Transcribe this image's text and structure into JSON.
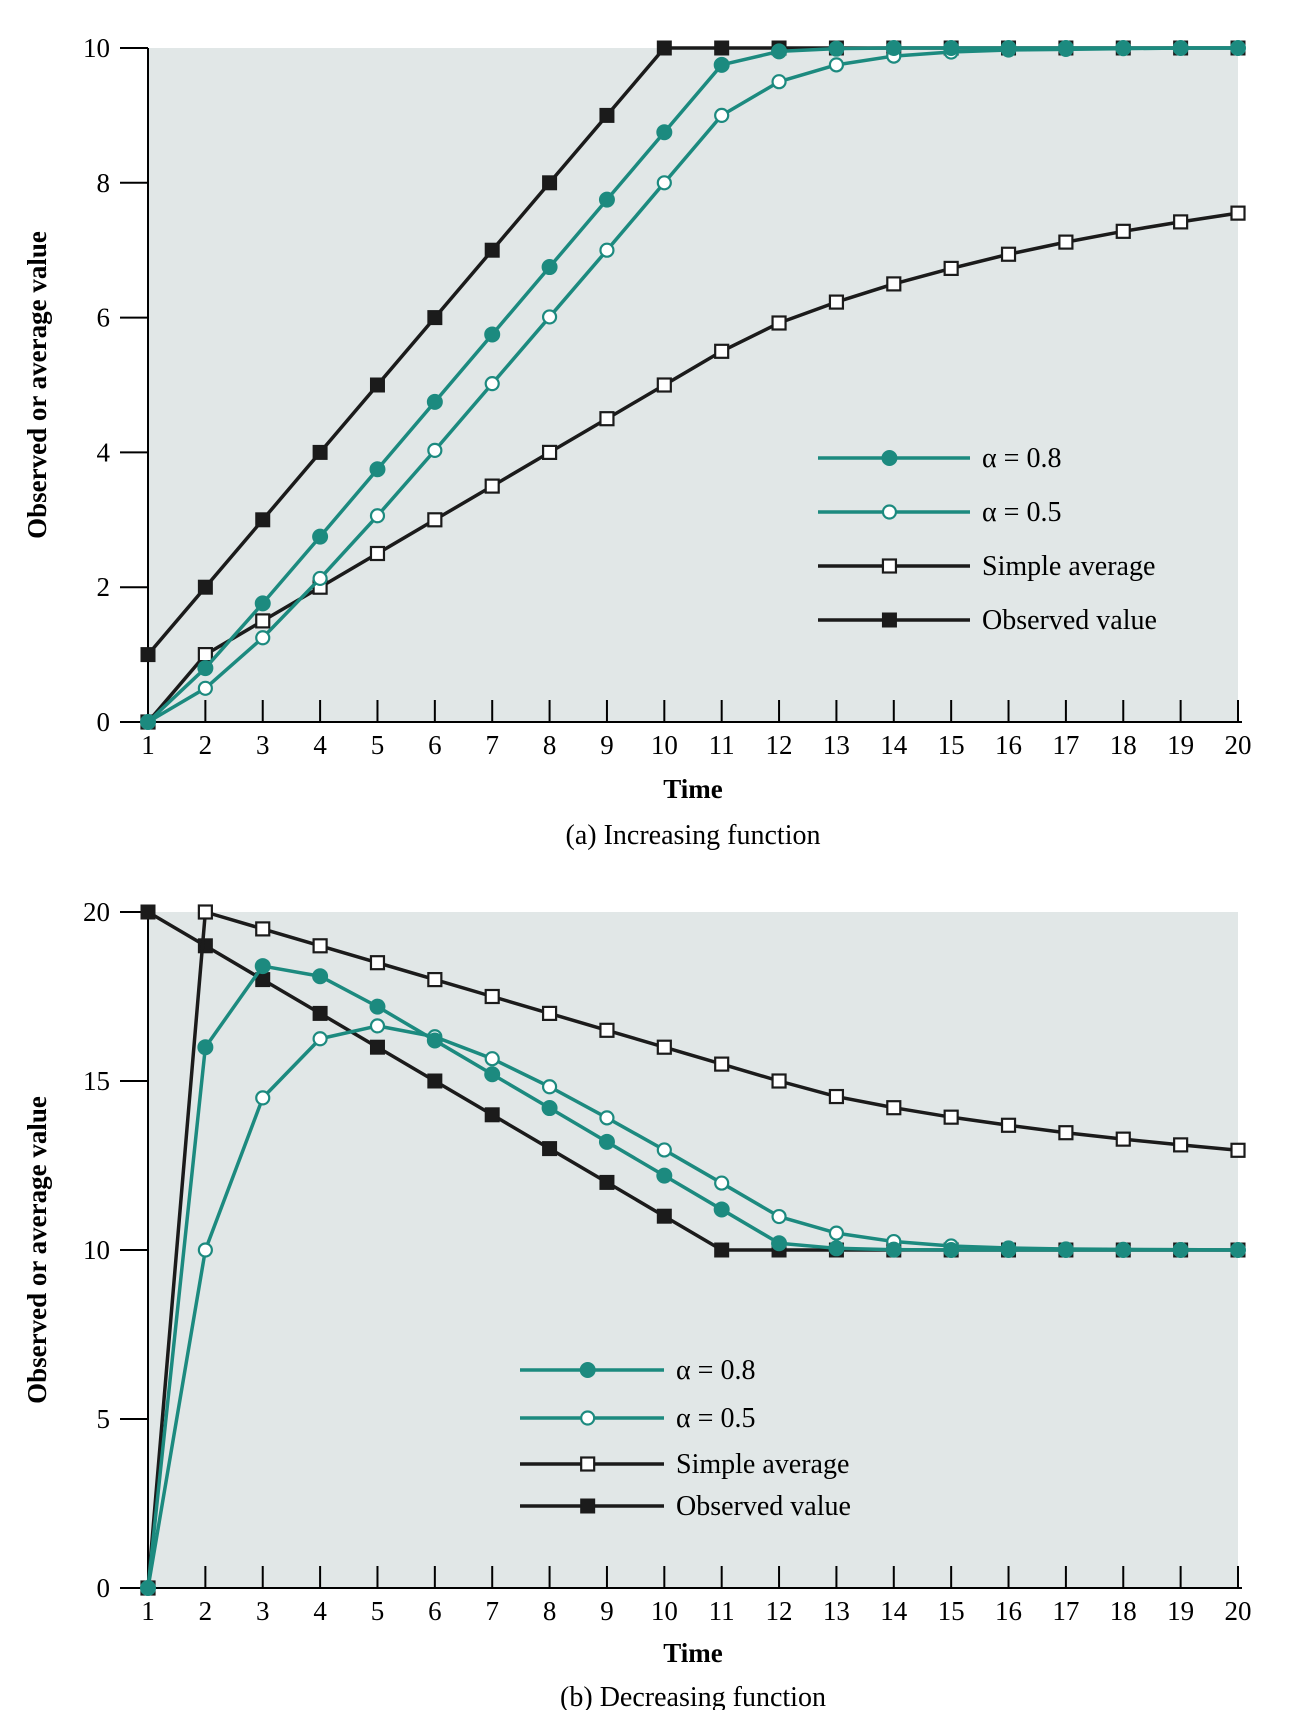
{
  "colors": {
    "teal": "#1c8a7f",
    "dark": "#1b1b1b",
    "plot_bg": "#e1e7e7"
  },
  "chart_data": [
    {
      "type": "line",
      "caption": "(a) Increasing function",
      "xlabel": "Time",
      "ylabel": "Observed or average value",
      "x": [
        1,
        2,
        3,
        4,
        5,
        6,
        7,
        8,
        9,
        10,
        11,
        12,
        13,
        14,
        15,
        16,
        17,
        18,
        19,
        20
      ],
      "xlim": [
        1,
        20
      ],
      "ylim": [
        0,
        10
      ],
      "yticks": [
        0,
        2,
        4,
        6,
        8,
        10
      ],
      "grid": false,
      "legend_position": "right",
      "series": [
        {
          "name": "α = 0.8",
          "color": "#1c8a7f",
          "marker": "filled-circle",
          "values": [
            0,
            0.8,
            1.76,
            2.75,
            3.75,
            4.75,
            5.75,
            6.75,
            7.75,
            8.75,
            9.75,
            9.95,
            9.99,
            10,
            10,
            10,
            10,
            10,
            10,
            10
          ]
        },
        {
          "name": "α = 0.5",
          "color": "#1c8a7f",
          "marker": "open-circle",
          "values": [
            0,
            0.5,
            1.25,
            2.13,
            3.06,
            4.03,
            5.02,
            6.01,
            7.0,
            8.0,
            9.0,
            9.5,
            9.75,
            9.88,
            9.94,
            9.97,
            9.98,
            9.99,
            10,
            10
          ]
        },
        {
          "name": "Simple average",
          "color": "#1b1b1b",
          "marker": "open-square",
          "values": [
            0,
            1.0,
            1.5,
            2.0,
            2.5,
            3.0,
            3.5,
            4.0,
            4.5,
            5.0,
            5.5,
            5.92,
            6.23,
            6.5,
            6.73,
            6.94,
            7.12,
            7.28,
            7.42,
            7.55
          ]
        },
        {
          "name": "Observed value",
          "color": "#1b1b1b",
          "marker": "filled-square",
          "values": [
            1,
            2,
            3,
            4,
            5,
            6,
            7,
            8,
            9,
            10,
            10,
            10,
            10,
            10,
            10,
            10,
            10,
            10,
            10,
            10
          ]
        }
      ]
    },
    {
      "type": "line",
      "caption": "(b) Decreasing function",
      "xlabel": "Time",
      "ylabel": "Observed or average value",
      "x": [
        1,
        2,
        3,
        4,
        5,
        6,
        7,
        8,
        9,
        10,
        11,
        12,
        13,
        14,
        15,
        16,
        17,
        18,
        19,
        20
      ],
      "xlim": [
        1,
        20
      ],
      "ylim": [
        0,
        20
      ],
      "yticks": [
        0,
        5,
        10,
        15,
        20
      ],
      "grid": false,
      "legend_position": "bottom-center",
      "series": [
        {
          "name": "α = 0.8",
          "color": "#1c8a7f",
          "marker": "filled-circle",
          "values": [
            0,
            16,
            18.4,
            18.1,
            17.2,
            16.2,
            15.2,
            14.2,
            13.2,
            12.2,
            11.2,
            10.2,
            10.05,
            10.01,
            10,
            10,
            10,
            10,
            10,
            10
          ]
        },
        {
          "name": "α = 0.5",
          "color": "#1c8a7f",
          "marker": "open-circle",
          "values": [
            0,
            10,
            14.5,
            16.25,
            16.63,
            16.31,
            15.66,
            14.83,
            13.91,
            12.96,
            11.98,
            10.99,
            10.5,
            10.25,
            10.12,
            10.06,
            10.03,
            10.02,
            10.01,
            10
          ]
        },
        {
          "name": "Simple average",
          "color": "#1b1b1b",
          "marker": "open-square",
          "values": [
            0,
            20,
            19.5,
            19.0,
            18.5,
            18.0,
            17.5,
            17.0,
            16.5,
            16.0,
            15.5,
            15.0,
            14.54,
            14.21,
            13.93,
            13.69,
            13.47,
            13.28,
            13.11,
            12.95
          ]
        },
        {
          "name": "Observed value",
          "color": "#1b1b1b",
          "marker": "filled-square",
          "values": [
            20,
            19,
            18,
            17,
            16,
            15,
            14,
            13,
            12,
            11,
            10,
            10,
            10,
            10,
            10,
            10,
            10,
            10,
            10,
            10
          ]
        }
      ]
    }
  ]
}
